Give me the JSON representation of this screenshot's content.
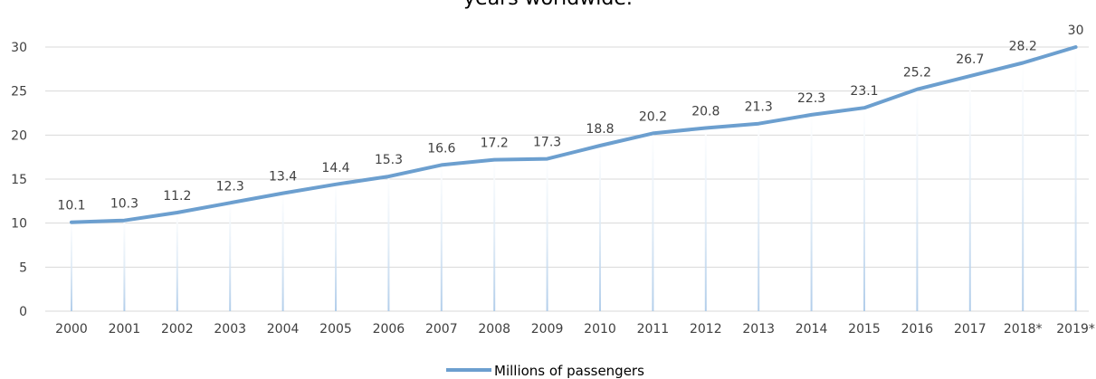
{
  "chart_data": {
    "type": "line",
    "title": "years worldwide.",
    "categories": [
      "2000",
      "2001",
      "2002",
      "2003",
      "2004",
      "2005",
      "2006",
      "2007",
      "2008",
      "2009",
      "2010",
      "2011",
      "2012",
      "2013",
      "2014",
      "2015",
      "2016",
      "2017",
      "2018*",
      "2019*"
    ],
    "series": [
      {
        "name": "Millions of passengers",
        "values": [
          10.1,
          10.3,
          11.2,
          12.3,
          13.4,
          14.4,
          15.3,
          16.6,
          17.2,
          17.3,
          18.8,
          20.2,
          20.8,
          21.3,
          22.3,
          23.1,
          25.2,
          26.7,
          28.2,
          30
        ],
        "labels": [
          "10.1",
          "10.3",
          "11.2",
          "12.3",
          "13.4",
          "14.4",
          "15.3",
          "16.6",
          "17.2",
          "17.3",
          "18.8",
          "20.2",
          "20.8",
          "21.3",
          "22.3",
          "23.1",
          "25.2",
          "26.7",
          "28.2",
          "30"
        ]
      }
    ],
    "yticks": [
      "0",
      "5",
      "10",
      "15",
      "20",
      "25",
      "30"
    ],
    "ylim": [
      0,
      30
    ],
    "grid": true,
    "legend_position": "bottom",
    "line_color": "#6c9fcf",
    "grid_color": "#d9d9d9"
  }
}
